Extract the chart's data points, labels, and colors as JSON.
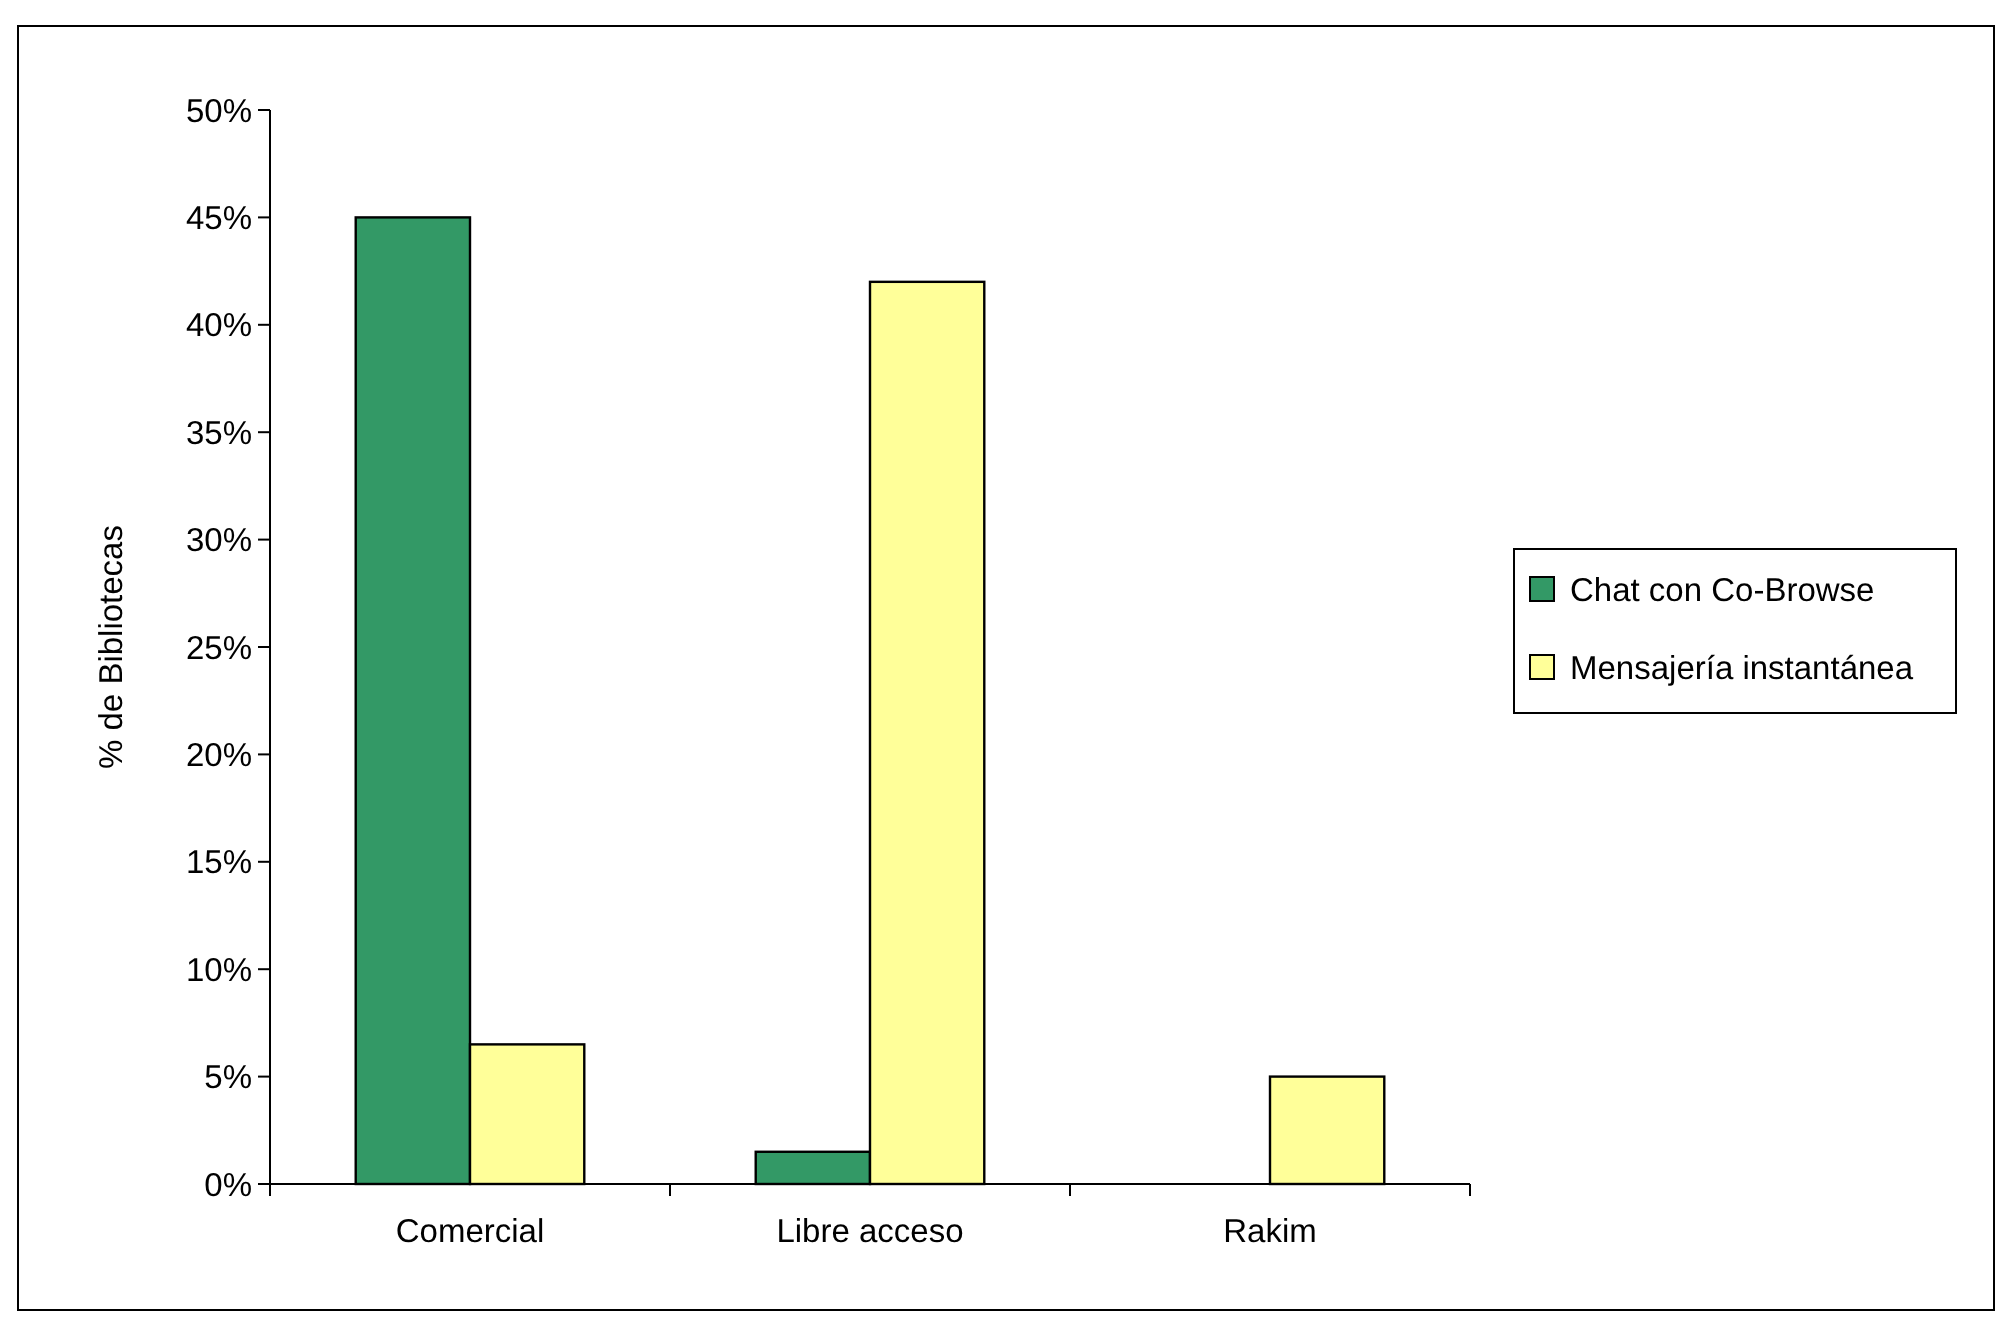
{
  "chart_data": {
    "type": "bar",
    "ylabel": "% de Bibliotecas",
    "categories": [
      "Comercial",
      "Libre acceso",
      "Rakim"
    ],
    "series": [
      {
        "name": "Chat con Co-Browse",
        "color": "#339966",
        "values": [
          45,
          1.5,
          null
        ]
      },
      {
        "name": "Mensajería instantánea",
        "color": "#ffff99",
        "values": [
          6.5,
          42,
          5
        ]
      }
    ],
    "ylim": [
      0,
      50
    ],
    "yticks": [
      {
        "value": 0,
        "label": "0%"
      },
      {
        "value": 5,
        "label": "5%"
      },
      {
        "value": 10,
        "label": "10%"
      },
      {
        "value": 15,
        "label": "15%"
      },
      {
        "value": 20,
        "label": "20%"
      },
      {
        "value": 25,
        "label": "25%"
      },
      {
        "value": 30,
        "label": "30%"
      },
      {
        "value": 35,
        "label": "35%"
      },
      {
        "value": 40,
        "label": "40%"
      },
      {
        "value": 45,
        "label": "45%"
      },
      {
        "value": 50,
        "label": "50%"
      }
    ],
    "grid": false,
    "legend": "right"
  }
}
